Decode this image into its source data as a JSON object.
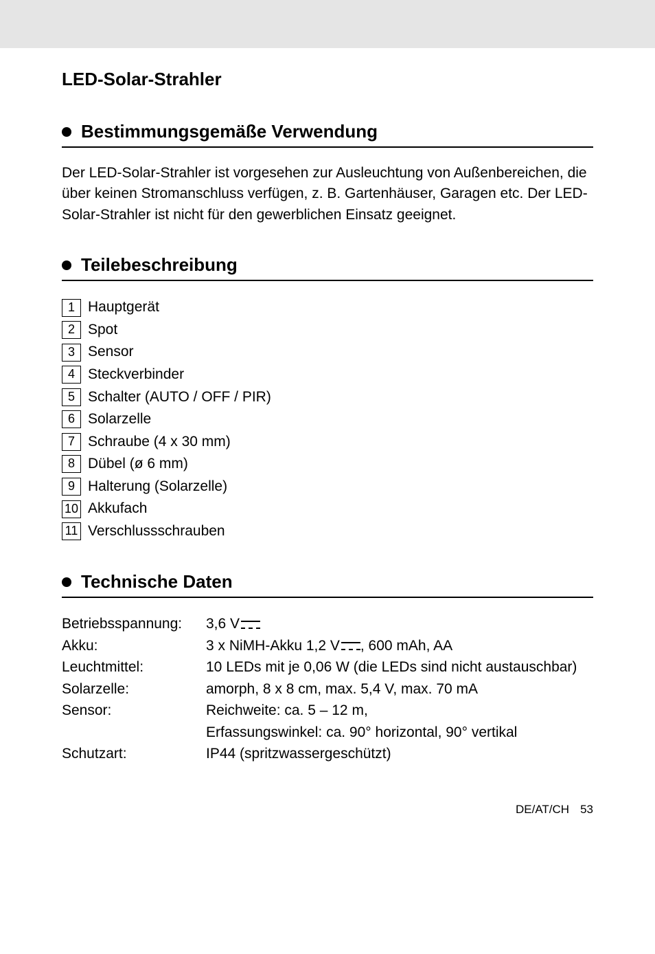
{
  "main_title": "LED-Solar-Strahler",
  "section_usage": {
    "title": "Bestimmungsgemäße Verwendung",
    "paragraph": "Der LED-Solar-Strahler ist vorgesehen zur Ausleuchtung von Außenbereichen, die über keinen Stromanschluss verfügen, z. B. Gartenhäuser, Garagen etc. Der LED-Solar-Strahler ist nicht für den gewerblichen Einsatz geeignet."
  },
  "section_parts": {
    "title": "Teilebeschreibung",
    "items": [
      {
        "num": "1",
        "label": "Hauptgerät"
      },
      {
        "num": "2",
        "label": "Spot"
      },
      {
        "num": "3",
        "label": "Sensor"
      },
      {
        "num": "4",
        "label": "Steckverbinder"
      },
      {
        "num": "5",
        "label": "Schalter (AUTO / OFF / PIR)"
      },
      {
        "num": "6",
        "label": "Solarzelle"
      },
      {
        "num": "7",
        "label": "Schraube (4 x 30 mm)"
      },
      {
        "num": "8",
        "label": "Dübel (ø 6 mm)"
      },
      {
        "num": "9",
        "label": "Halterung (Solarzelle)"
      },
      {
        "num": "10",
        "label": "Akkufach"
      },
      {
        "num": "11",
        "label": "Verschlussschrauben"
      }
    ]
  },
  "section_specs": {
    "title": "Technische Daten",
    "rows": [
      {
        "label": "Betriebsspannung:",
        "value_pre": "3,6 V",
        "dc": true,
        "value_post": ""
      },
      {
        "label": "Akku:",
        "value_pre": "3 x NiMH-Akku 1,2 V",
        "dc": true,
        "value_post": ", 600 mAh, AA"
      },
      {
        "label": "Leuchtmittel:",
        "value_pre": "10 LEDs mit je 0,06 W (die LEDs sind nicht austauschbar)",
        "dc": false,
        "value_post": ""
      },
      {
        "label": "Solarzelle:",
        "value_pre": "amorph, 8 x 8 cm, max. 5,4 V, max. 70 mA",
        "dc": false,
        "value_post": ""
      },
      {
        "label": "Sensor:",
        "value_pre": "Reichweite: ca. 5 – 12 m,",
        "dc": false,
        "value_post": ""
      },
      {
        "label": "",
        "value_pre": "Erfassungswinkel: ca. 90° horizontal, 90° vertikal",
        "dc": false,
        "value_post": ""
      },
      {
        "label": "Schutzart:",
        "value_pre": "IP44 (spritzwassergeschützt)",
        "dc": false,
        "value_post": ""
      }
    ]
  },
  "footer": {
    "region": "DE/AT/CH",
    "page": "53"
  }
}
